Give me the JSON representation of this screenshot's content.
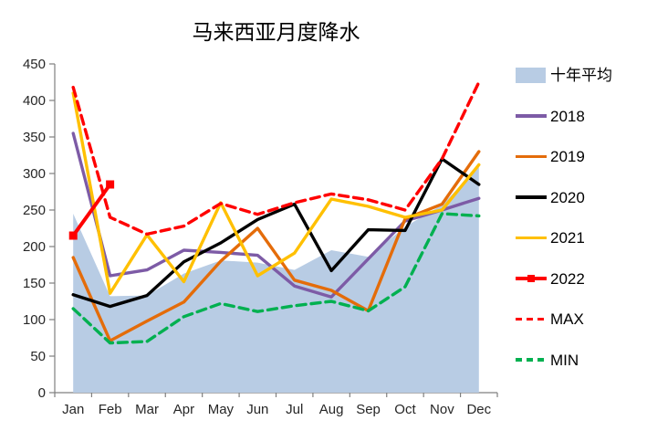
{
  "title": "马来西亚月度降水",
  "chart_data": {
    "type": "line",
    "title": "马来西亚月度降水",
    "grid": false,
    "legend_position": "right",
    "categories": [
      "Jan",
      "Feb",
      "Mar",
      "Apr",
      "May",
      "Jun",
      "Jul",
      "Aug",
      "Sep",
      "Oct",
      "Nov",
      "Dec"
    ],
    "xlabel": "",
    "ylabel": "",
    "y_axis": {
      "min": 0,
      "max": 450,
      "step": 50
    },
    "axis_color": "#7f7f7f",
    "tick_label_color": "#262626",
    "series": [
      {
        "name": "十年平均",
        "type": "area",
        "color": "#B8CCE4",
        "values": [
          245,
          132,
          133,
          163,
          181,
          178,
          168,
          195,
          186,
          227,
          257,
          310
        ]
      },
      {
        "name": "2018",
        "type": "line",
        "color": "#7D5BA6",
        "values": [
          355,
          160,
          168,
          195,
          192,
          188,
          146,
          131,
          183,
          235,
          250,
          266
        ]
      },
      {
        "name": "2019",
        "type": "line",
        "color": "#E46C0A",
        "values": [
          185,
          71,
          98,
          124,
          180,
          225,
          154,
          140,
          112,
          238,
          258,
          330
        ]
      },
      {
        "name": "2020",
        "type": "line",
        "color": "#000000",
        "values": [
          134,
          118,
          133,
          179,
          205,
          237,
          258,
          167,
          223,
          222,
          320,
          285
        ]
      },
      {
        "name": "2021",
        "type": "line",
        "color": "#FFC000",
        "values": [
          410,
          136,
          216,
          152,
          260,
          160,
          191,
          265,
          255,
          240,
          250,
          312
        ]
      },
      {
        "name": "2022",
        "type": "line-marker",
        "color": "#FF0000",
        "marker": "square",
        "values": [
          215,
          285,
          null,
          null,
          null,
          null,
          null,
          null,
          null,
          null,
          null,
          null
        ]
      },
      {
        "name": "MAX",
        "type": "dashed",
        "color": "#FF0000",
        "values": [
          418,
          240,
          217,
          228,
          259,
          244,
          260,
          272,
          264,
          250,
          320,
          425
        ]
      },
      {
        "name": "MIN",
        "type": "dashed",
        "color": "#00B050",
        "values": [
          115,
          68,
          70,
          104,
          122,
          111,
          119,
          125,
          112,
          145,
          245,
          242
        ]
      }
    ]
  }
}
